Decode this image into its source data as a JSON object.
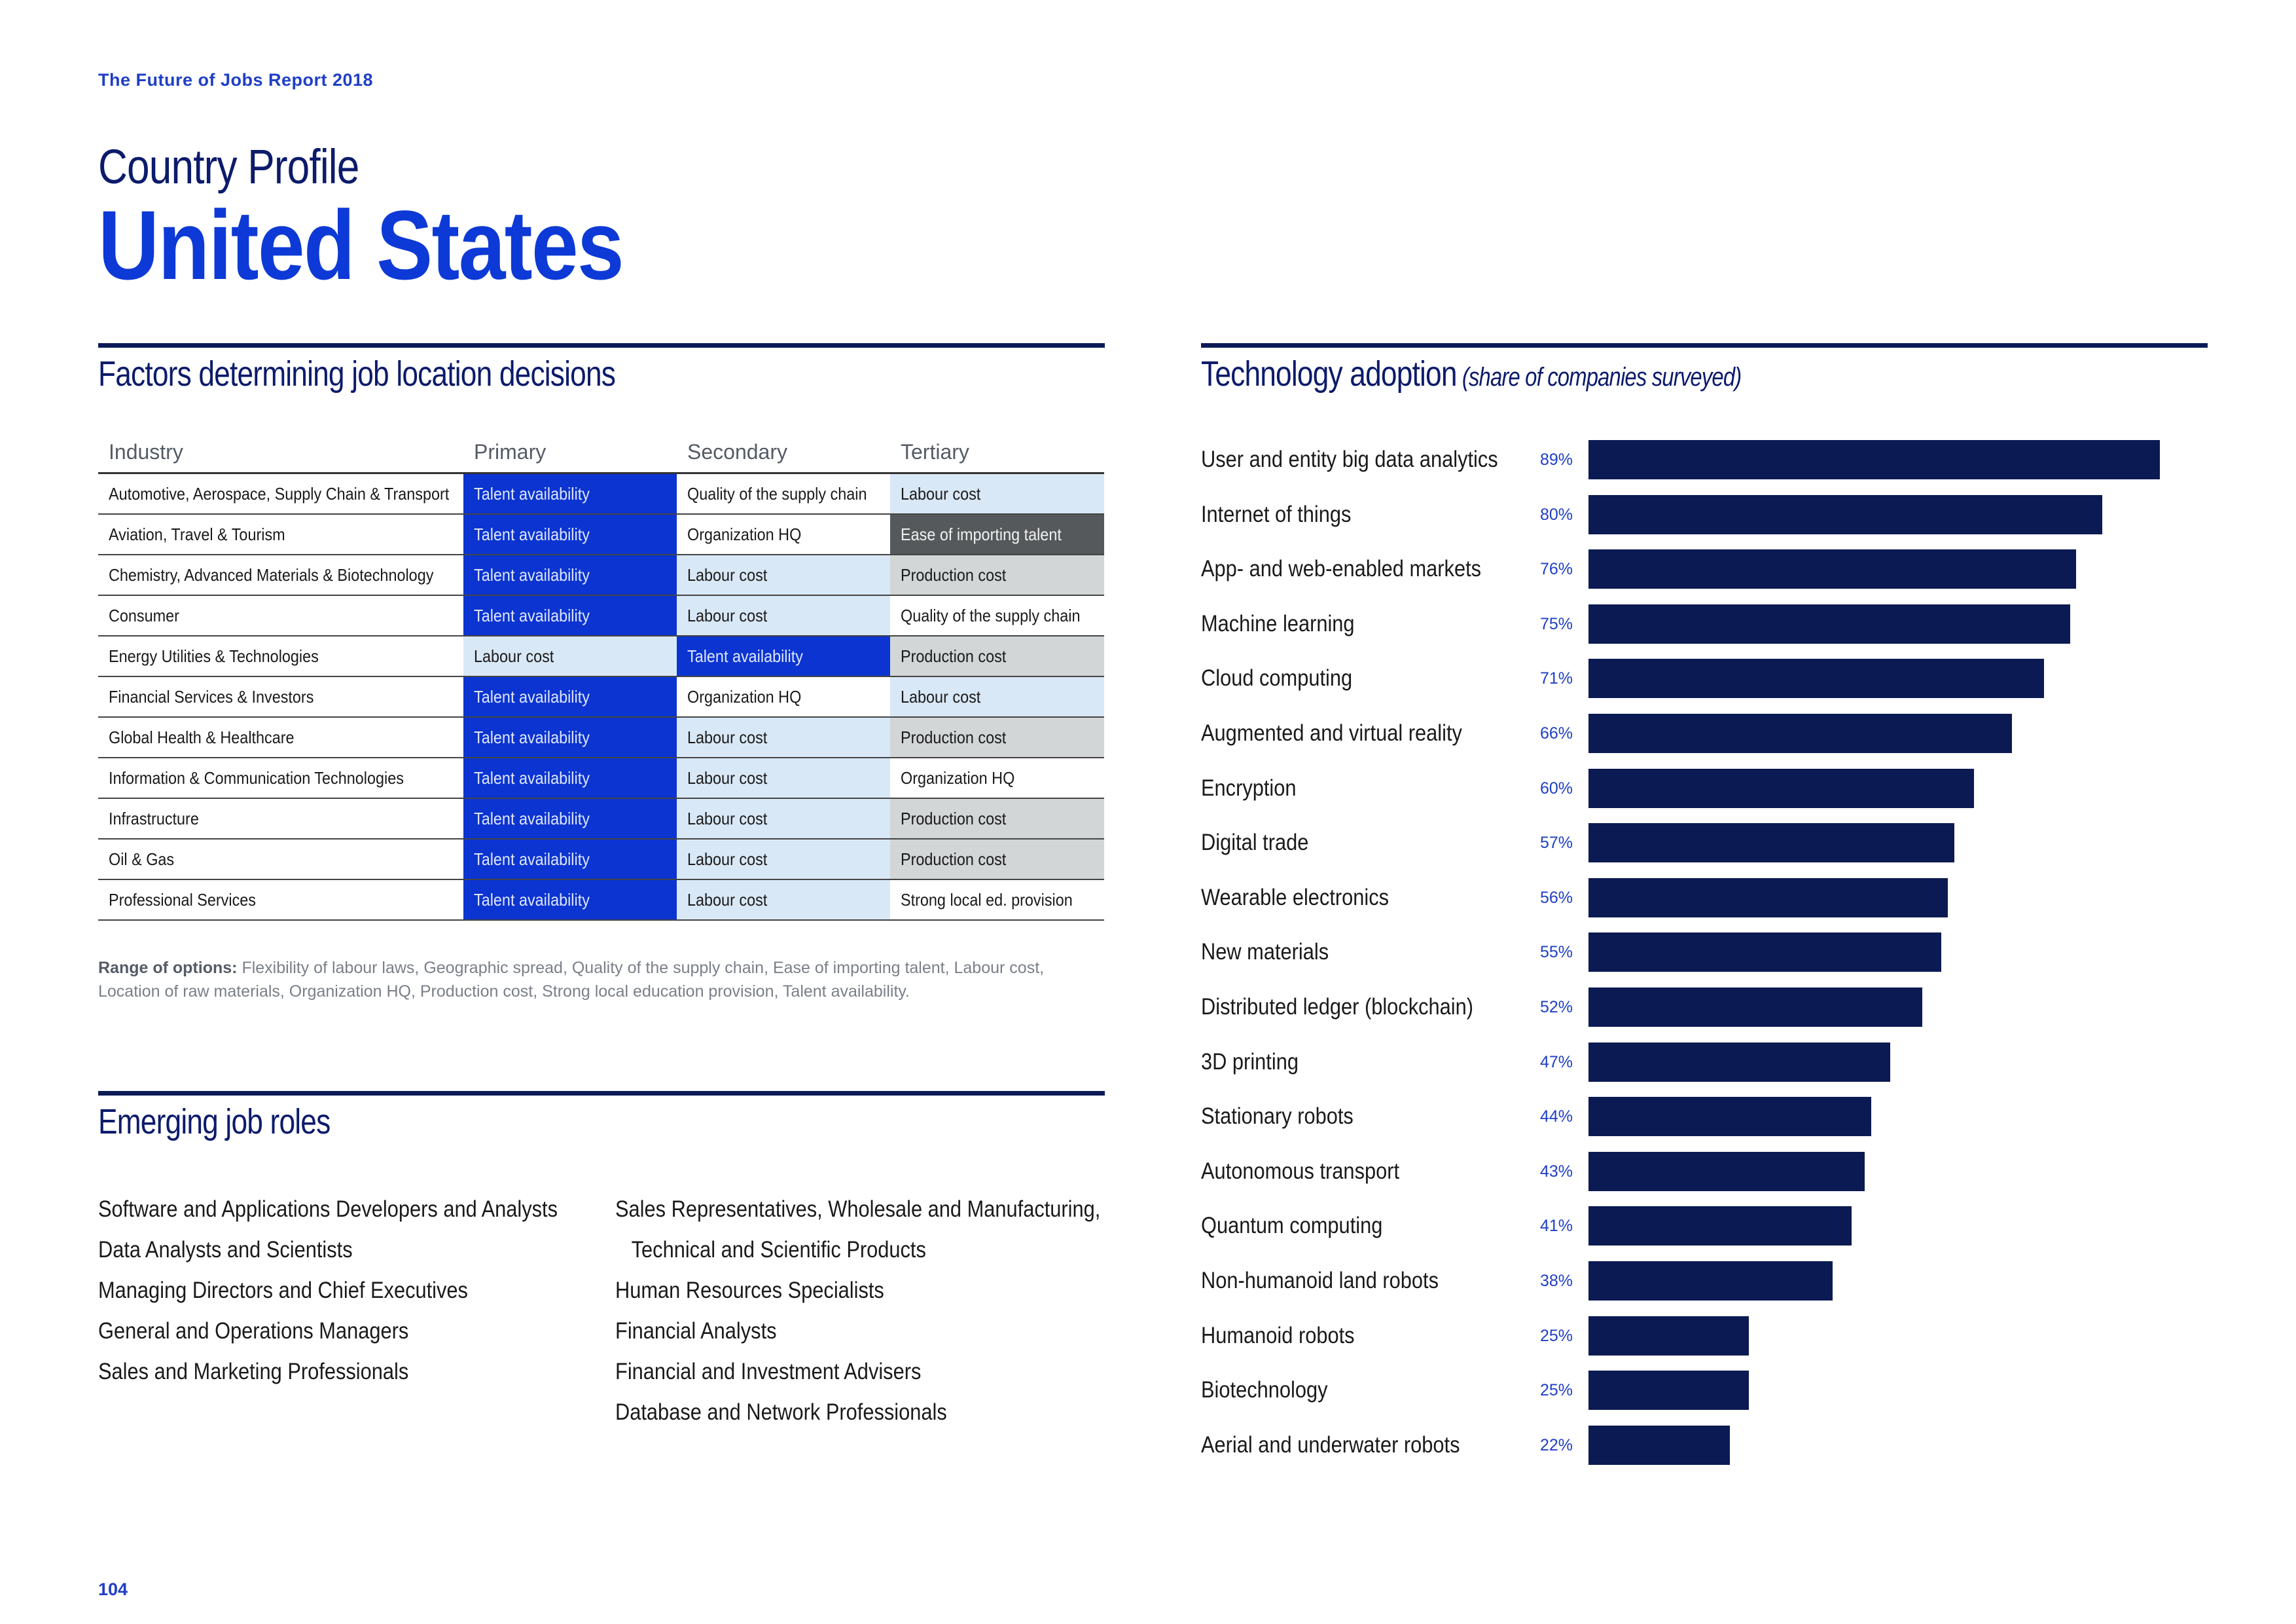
{
  "header": {
    "report_title": "The Future of Jobs Report 2018",
    "profile_label": "Country Profile",
    "country": "United States"
  },
  "factors": {
    "title": "Factors determining job location decisions",
    "columns": [
      "Industry",
      "Primary",
      "Secondary",
      "Tertiary"
    ],
    "rows": [
      {
        "industry": "Automotive, Aerospace, Supply Chain & Transport",
        "primary": "Talent availability",
        "secondary": "Quality of the supply chain",
        "tertiary": "Labour cost"
      },
      {
        "industry": "Aviation, Travel & Tourism",
        "primary": "Talent availability",
        "secondary": "Organization HQ",
        "tertiary": "Ease of importing talent"
      },
      {
        "industry": "Chemistry, Advanced Materials & Biotechnology",
        "primary": "Talent availability",
        "secondary": "Labour cost",
        "tertiary": "Production cost"
      },
      {
        "industry": "Consumer",
        "primary": "Talent availability",
        "secondary": "Labour cost",
        "tertiary": "Quality of the supply chain"
      },
      {
        "industry": "Energy Utilities & Technologies",
        "primary": "Labour cost",
        "secondary": "Talent availability",
        "tertiary": "Production cost"
      },
      {
        "industry": "Financial Services & Investors",
        "primary": "Talent availability",
        "secondary": "Organization HQ",
        "tertiary": "Labour cost"
      },
      {
        "industry": "Global Health & Healthcare",
        "primary": "Talent availability",
        "secondary": "Labour cost",
        "tertiary": "Production cost"
      },
      {
        "industry": "Information & Communication Technologies",
        "primary": "Talent availability",
        "secondary": "Labour cost",
        "tertiary": "Organization HQ"
      },
      {
        "industry": "Infrastructure",
        "primary": "Talent availability",
        "secondary": "Labour cost",
        "tertiary": "Production cost"
      },
      {
        "industry": "Oil & Gas",
        "primary": "Talent availability",
        "secondary": "Labour cost",
        "tertiary": "Production cost"
      },
      {
        "industry": "Professional Services",
        "primary": "Talent availability",
        "secondary": "Labour cost",
        "tertiary": "Strong local ed. provision"
      }
    ],
    "range_label": "Range of options:",
    "range_text": "Flexibility of labour laws, Geographic spread, Quality of the supply chain, Ease of importing talent, Labour cost, Location of raw materials, Organization HQ, Production cost, Strong local education provision, Talent availability.",
    "colors": {
      "Talent availability": "#0b34d0",
      "Labour cost": "#d9e8f6",
      "Production cost": "#d2d6d7",
      "Ease of importing talent": "#55595b",
      "Organization HQ": "#ffffff"
    }
  },
  "roles": {
    "title": "Emerging job roles",
    "left": [
      "Software and Applications Developers and Analysts",
      "Data Analysts and Scientists",
      "Managing Directors and Chief Executives",
      "General and Operations Managers",
      "Sales and Marketing Professionals"
    ],
    "right": [
      "Sales Representatives, Wholesale and Manufacturing,",
      "Technical and Scientific Products",
      "Human Resources Specialists",
      "Financial Analysts",
      "Financial and Investment Advisers",
      "Database and Network Professionals"
    ]
  },
  "tech": {
    "title": "Technology adoption",
    "subtitle": "(share of companies surveyed)"
  },
  "chart_data": {
    "type": "bar",
    "orientation": "horizontal",
    "title": "Technology adoption (share of companies surveyed)",
    "unit": "%",
    "xlim": [
      0,
      100
    ],
    "bar_color": "#0b1a52",
    "categories": [
      "User and entity big data analytics",
      "Internet of things",
      "App- and web-enabled markets",
      "Machine learning",
      "Cloud computing",
      "Augmented and virtual reality",
      "Encryption",
      "Digital trade",
      "Wearable electronics",
      "New materials",
      "Distributed ledger (blockchain)",
      "3D printing",
      "Stationary robots",
      "Autonomous transport",
      "Quantum computing",
      "Non-humanoid land robots",
      "Humanoid robots",
      "Biotechnology",
      "Aerial and underwater robots"
    ],
    "values": [
      89,
      80,
      76,
      75,
      71,
      66,
      60,
      57,
      56,
      55,
      52,
      47,
      44,
      43,
      41,
      38,
      25,
      25,
      22
    ],
    "labels": [
      "89%",
      "80%",
      "76%",
      "75%",
      "71%",
      "66%",
      "60%",
      "57%",
      "56%",
      "55%",
      "52%",
      "47%",
      "44%",
      "43%",
      "41%",
      "38%",
      "25%",
      "25%",
      "22%"
    ]
  },
  "footer": {
    "page_number": "104"
  }
}
